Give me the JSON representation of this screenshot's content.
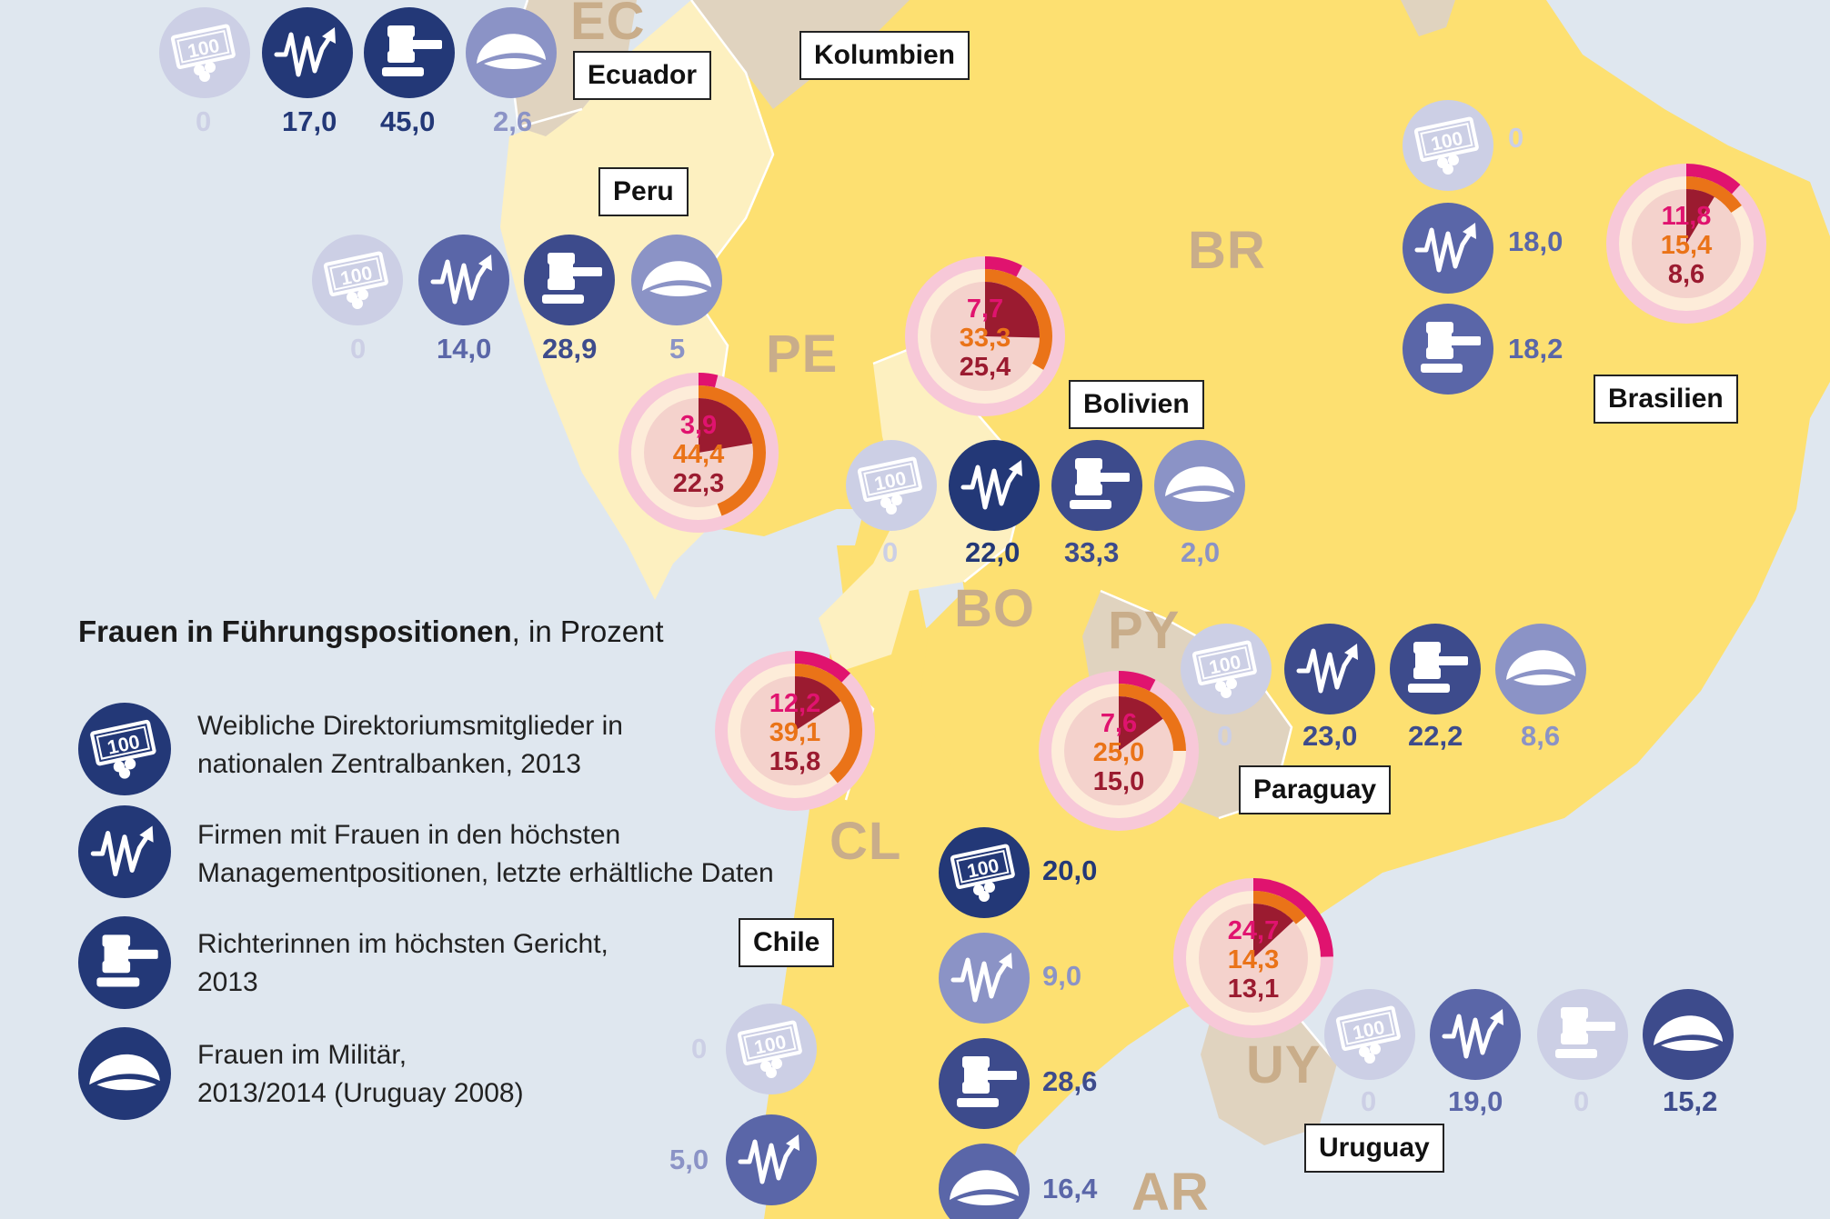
{
  "colors": {
    "ocean": "#dfe7ef",
    "land_yellow": "#fde071",
    "land_pale": "#fdf0c0",
    "land_taupe": "#e0d3bf",
    "navy": "#233877",
    "mid_blue": "#5a66a8",
    "light_blue": "#8b93c6",
    "faint_blue": "#cccfe5",
    "pink": "#e0136f",
    "orange": "#ea7318",
    "dark_red": "#9b1b30"
  },
  "country_codes": {
    "ec": "EC",
    "br": "BR",
    "pe": "PE",
    "bo": "BO",
    "py": "PY",
    "cl": "CL",
    "uy": "UY",
    "ar": "AR"
  },
  "country_labels": {
    "ecuador": "Ecuador",
    "kolumbien": "Kolumbien",
    "peru": "Peru",
    "bolivien": "Bolivien",
    "brasilien": "Brasilien",
    "paraguay": "Paraguay",
    "chile": "Chile",
    "uruguay": "Uruguay"
  },
  "icons": {
    "zentralbank": "banknote-coins-icon",
    "management": "growth-chart-icon",
    "gericht": "judge-gavel-icon",
    "militaer": "military-cap-icon"
  },
  "values": {
    "ecuador": {
      "zentralbank": "0",
      "management": "17,0",
      "gericht": "45,0",
      "militaer": "2,6"
    },
    "peru": {
      "zentralbank": "0",
      "management": "14,0",
      "gericht": "28,9",
      "militaer": "5"
    },
    "bolivien": {
      "zentralbank": "0",
      "management": "22,0",
      "gericht": "33,3",
      "militaer": "2,0"
    },
    "brasilien": {
      "zentralbank": "0",
      "management": "18,0",
      "gericht": "18,2"
    },
    "paraguay": {
      "zentralbank": "0",
      "management": "23,0",
      "gericht": "22,2",
      "militaer": "8,6"
    },
    "argentinien": {
      "zentralbank": "20,0",
      "management": "9,0",
      "gericht": "28,6",
      "militaer": "16,4"
    },
    "chile": {
      "zentralbank": "0",
      "management": "5,0"
    },
    "uruguay": {
      "zentralbank": "0",
      "management": "19,0",
      "gericht": "0",
      "militaer": "15,2"
    }
  },
  "pies": {
    "bolivien": {
      "pink": "7,7",
      "orange": "33,3",
      "red": "25,4",
      "pink_n": 7.7,
      "orange_n": 33.3,
      "red_n": 25.4
    },
    "peru": {
      "pink": "3,9",
      "orange": "44,4",
      "red": "22,3",
      "pink_n": 3.9,
      "orange_n": 44.4,
      "red_n": 22.3
    },
    "brasilien": {
      "pink": "11,8",
      "orange": "15,4",
      "red": "8,6",
      "pink_n": 11.8,
      "orange_n": 15.4,
      "red_n": 8.6
    },
    "chile": {
      "pink": "12,2",
      "orange": "39,1",
      "red": "15,8",
      "pink_n": 12.2,
      "orange_n": 39.1,
      "red_n": 15.8
    },
    "paraguay": {
      "pink": "7,6",
      "orange": "25,0",
      "red": "15,0",
      "pink_n": 7.6,
      "orange_n": 25.0,
      "red_n": 15.0
    },
    "uruguay": {
      "pink": "24,7",
      "orange": "14,3",
      "red": "13,1",
      "pink_n": 24.7,
      "orange_n": 14.3,
      "red_n": 13.1
    }
  },
  "legend": {
    "title_bold": "Frauen in Führungspositionen",
    "title_rest": ", in Prozent",
    "items": [
      {
        "line1": "Weibliche Direktoriumsmitglieder in",
        "line2": "nationalen Zentralbanken, 2013"
      },
      {
        "line1": "Firmen mit Frauen in den höchsten",
        "line2": "Managementpositionen, letzte erhältliche Daten"
      },
      {
        "line1": "Richterinnen im höchsten Gericht,",
        "line2": "2013"
      },
      {
        "line1": "Frauen im Militär,",
        "line2": "2013/2014 (Uruguay 2008)"
      }
    ]
  }
}
